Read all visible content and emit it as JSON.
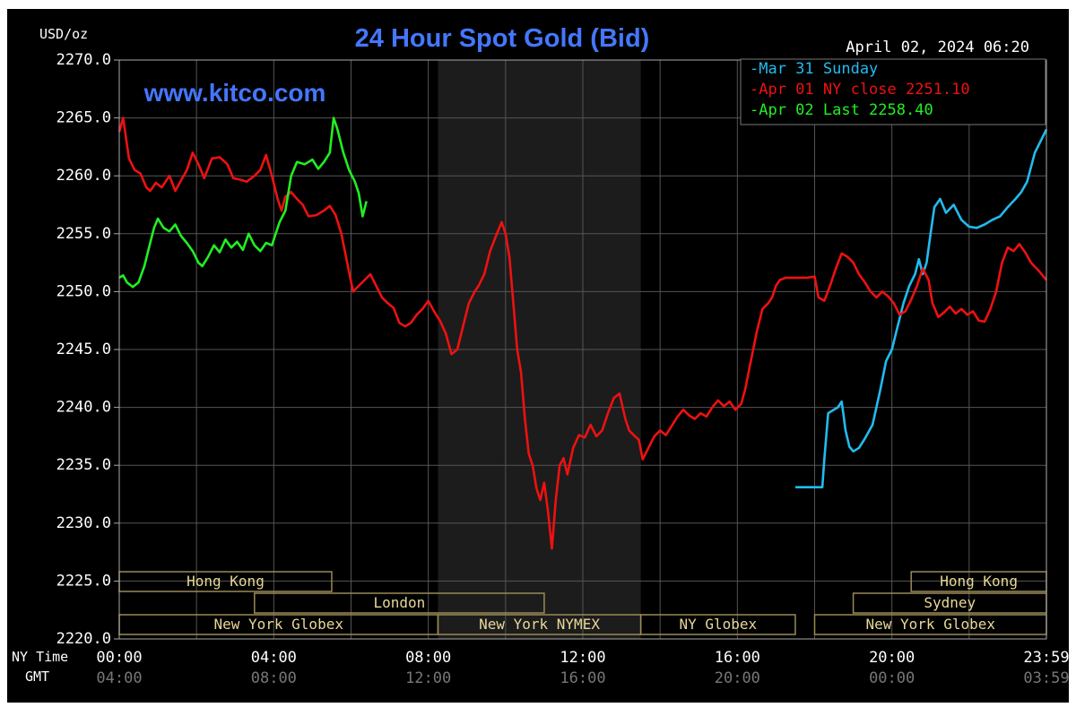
{
  "chart_data": {
    "type": "line",
    "title": "24 Hour Spot Gold (Bid)",
    "subtitle": "www.kitco.com",
    "date_label": "April 02, 2024 06:20",
    "ylabel": "USD/oz",
    "ylim": [
      2220.0,
      2270.0
    ],
    "y_ticks": [
      "2270.0",
      "2265.0",
      "2260.0",
      "2255.0",
      "2250.0",
      "2245.0",
      "2240.0",
      "2235.0",
      "2230.0",
      "2225.0",
      "2220.0"
    ],
    "xlim": [
      0,
      24
    ],
    "x_axis_label_ny": "NY Time",
    "x_axis_label_gmt": "GMT",
    "x_ticks_ny": [
      {
        "hour": 0,
        "label": "00:00"
      },
      {
        "hour": 4,
        "label": "04:00"
      },
      {
        "hour": 8,
        "label": "08:00"
      },
      {
        "hour": 12,
        "label": "12:00"
      },
      {
        "hour": 16,
        "label": "16:00"
      },
      {
        "hour": 20,
        "label": "20:00"
      },
      {
        "hour": 24,
        "label": "23:59"
      }
    ],
    "x_ticks_gmt": [
      {
        "hour": 0,
        "label": "04:00"
      },
      {
        "hour": 4,
        "label": "08:00"
      },
      {
        "hour": 8,
        "label": "12:00"
      },
      {
        "hour": 12,
        "label": "16:00"
      },
      {
        "hour": 16,
        "label": "20:00"
      },
      {
        "hour": 20,
        "label": "00:00"
      },
      {
        "hour": 24,
        "label": "03:59"
      }
    ],
    "grid": true,
    "legend_position": "top-right",
    "shaded_region": {
      "x_start": 8.25,
      "x_end": 13.5
    },
    "sessions": [
      {
        "label": "Hong Kong",
        "row": 0,
        "x_start": 0,
        "x_end": 5.5
      },
      {
        "label": "London",
        "row": 1,
        "x_start": 3.5,
        "x_end": 11.0
      },
      {
        "label": "New York Globex",
        "row": 2,
        "x_start": 0,
        "x_end": 8.25
      },
      {
        "label": "New York NYMEX",
        "row": 2,
        "x_start": 8.25,
        "x_end": 13.5
      },
      {
        "label": "NY Globex",
        "row": 2,
        "x_start": 13.5,
        "x_end": 17.5
      },
      {
        "label": "Hong Kong",
        "row": 0,
        "x_start": 20.5,
        "x_end": 24
      },
      {
        "label": "Sydney",
        "row": 1,
        "x_start": 19.0,
        "x_end": 24
      },
      {
        "label": "New York Globex",
        "row": 2,
        "x_start": 18.0,
        "x_end": 24
      }
    ],
    "series": [
      {
        "name": "Mar 31 Sunday",
        "color": "#22bbee",
        "points": [
          [
            17.5,
            2233.1
          ],
          [
            18.2,
            2233.1
          ],
          [
            18.25,
            2235.5
          ],
          [
            18.35,
            2239.5
          ],
          [
            18.5,
            2239.8
          ],
          [
            18.6,
            2240.0
          ],
          [
            18.7,
            2240.5
          ],
          [
            18.8,
            2238.0
          ],
          [
            18.9,
            2236.6
          ],
          [
            19.0,
            2236.2
          ],
          [
            19.15,
            2236.5
          ],
          [
            19.3,
            2237.3
          ],
          [
            19.5,
            2238.5
          ],
          [
            19.7,
            2241.5
          ],
          [
            19.85,
            2244.0
          ],
          [
            20.0,
            2245.0
          ],
          [
            20.15,
            2247.0
          ],
          [
            20.3,
            2249.0
          ],
          [
            20.45,
            2250.5
          ],
          [
            20.6,
            2251.5
          ],
          [
            20.7,
            2252.8
          ],
          [
            20.8,
            2251.5
          ],
          [
            20.9,
            2252.5
          ],
          [
            21.0,
            2255.0
          ],
          [
            21.1,
            2257.3
          ],
          [
            21.25,
            2258.0
          ],
          [
            21.4,
            2256.8
          ],
          [
            21.6,
            2257.5
          ],
          [
            21.8,
            2256.2
          ],
          [
            22.0,
            2255.6
          ],
          [
            22.2,
            2255.5
          ],
          [
            22.4,
            2255.8
          ],
          [
            22.6,
            2256.2
          ],
          [
            22.8,
            2256.5
          ],
          [
            23.0,
            2257.3
          ],
          [
            23.2,
            2258.0
          ],
          [
            23.35,
            2258.6
          ],
          [
            23.5,
            2259.5
          ],
          [
            23.7,
            2262.0
          ],
          [
            24.0,
            2264.0
          ]
        ]
      },
      {
        "name": "Apr 01 NY close 2251.10",
        "color": "#ee1111",
        "points": [
          [
            0.0,
            2263.8
          ],
          [
            0.1,
            2265.0
          ],
          [
            0.25,
            2261.5
          ],
          [
            0.4,
            2260.5
          ],
          [
            0.55,
            2260.2
          ],
          [
            0.7,
            2259.0
          ],
          [
            0.8,
            2258.7
          ],
          [
            0.95,
            2259.4
          ],
          [
            1.1,
            2259.0
          ],
          [
            1.3,
            2260.0
          ],
          [
            1.45,
            2258.7
          ],
          [
            1.6,
            2259.6
          ],
          [
            1.75,
            2260.5
          ],
          [
            1.9,
            2262.0
          ],
          [
            2.05,
            2261.0
          ],
          [
            2.2,
            2259.8
          ],
          [
            2.4,
            2261.5
          ],
          [
            2.6,
            2261.6
          ],
          [
            2.8,
            2261.0
          ],
          [
            2.95,
            2259.8
          ],
          [
            3.1,
            2259.7
          ],
          [
            3.3,
            2259.5
          ],
          [
            3.5,
            2260.0
          ],
          [
            3.65,
            2260.5
          ],
          [
            3.8,
            2261.8
          ],
          [
            3.95,
            2260.0
          ],
          [
            4.1,
            2258.0
          ],
          [
            4.2,
            2257.0
          ],
          [
            4.3,
            2258.2
          ],
          [
            4.45,
            2258.6
          ],
          [
            4.6,
            2258.0
          ],
          [
            4.75,
            2257.5
          ],
          [
            4.9,
            2256.5
          ],
          [
            5.1,
            2256.6
          ],
          [
            5.3,
            2257.0
          ],
          [
            5.45,
            2257.4
          ],
          [
            5.6,
            2256.6
          ],
          [
            5.75,
            2255.0
          ],
          [
            5.9,
            2252.5
          ],
          [
            6.05,
            2250.0
          ],
          [
            6.2,
            2250.5
          ],
          [
            6.35,
            2251.0
          ],
          [
            6.5,
            2251.5
          ],
          [
            6.65,
            2250.5
          ],
          [
            6.8,
            2249.5
          ],
          [
            6.95,
            2249.0
          ],
          [
            7.1,
            2248.6
          ],
          [
            7.25,
            2247.3
          ],
          [
            7.4,
            2247.0
          ],
          [
            7.55,
            2247.3
          ],
          [
            7.7,
            2248.0
          ],
          [
            7.85,
            2248.5
          ],
          [
            8.0,
            2249.2
          ],
          [
            8.15,
            2248.3
          ],
          [
            8.3,
            2247.5
          ],
          [
            8.45,
            2246.4
          ],
          [
            8.6,
            2244.6
          ],
          [
            8.75,
            2245.0
          ],
          [
            8.9,
            2247.0
          ],
          [
            9.05,
            2249.0
          ],
          [
            9.2,
            2250.0
          ],
          [
            9.3,
            2250.5
          ],
          [
            9.45,
            2251.5
          ],
          [
            9.6,
            2253.5
          ],
          [
            9.75,
            2254.8
          ],
          [
            9.9,
            2256.0
          ],
          [
            10.0,
            2255.0
          ],
          [
            10.1,
            2253.0
          ],
          [
            10.2,
            2249.0
          ],
          [
            10.3,
            2245.0
          ],
          [
            10.4,
            2243.0
          ],
          [
            10.5,
            2239.0
          ],
          [
            10.6,
            2236.0
          ],
          [
            10.7,
            2235.0
          ],
          [
            10.8,
            2233.0
          ],
          [
            10.9,
            2232.0
          ],
          [
            11.0,
            2233.5
          ],
          [
            11.1,
            2231.0
          ],
          [
            11.2,
            2227.8
          ],
          [
            11.3,
            2232.0
          ],
          [
            11.4,
            2235.0
          ],
          [
            11.5,
            2235.6
          ],
          [
            11.6,
            2234.2
          ],
          [
            11.75,
            2236.5
          ],
          [
            11.9,
            2237.6
          ],
          [
            12.05,
            2237.4
          ],
          [
            12.2,
            2238.5
          ],
          [
            12.35,
            2237.5
          ],
          [
            12.5,
            2238.0
          ],
          [
            12.65,
            2239.5
          ],
          [
            12.8,
            2240.8
          ],
          [
            12.95,
            2241.2
          ],
          [
            13.1,
            2239.0
          ],
          [
            13.2,
            2238.0
          ],
          [
            13.35,
            2237.5
          ],
          [
            13.45,
            2237.2
          ],
          [
            13.55,
            2235.5
          ],
          [
            13.7,
            2236.5
          ],
          [
            13.85,
            2237.5
          ],
          [
            14.0,
            2238.0
          ],
          [
            14.15,
            2237.6
          ],
          [
            14.3,
            2238.4
          ],
          [
            14.45,
            2239.2
          ],
          [
            14.6,
            2239.8
          ],
          [
            14.75,
            2239.3
          ],
          [
            14.9,
            2239.0
          ],
          [
            15.05,
            2239.5
          ],
          [
            15.2,
            2239.2
          ],
          [
            15.35,
            2240.0
          ],
          [
            15.5,
            2240.6
          ],
          [
            15.65,
            2240.1
          ],
          [
            15.8,
            2240.5
          ],
          [
            15.95,
            2239.8
          ],
          [
            16.1,
            2240.3
          ],
          [
            16.2,
            2241.5
          ],
          [
            16.35,
            2244.0
          ],
          [
            16.5,
            2246.5
          ],
          [
            16.65,
            2248.5
          ],
          [
            16.8,
            2249.0
          ],
          [
            16.9,
            2249.5
          ],
          [
            17.0,
            2250.5
          ],
          [
            17.1,
            2251.0
          ],
          [
            17.25,
            2251.2
          ],
          [
            17.5,
            2251.2
          ],
          [
            17.8,
            2251.2
          ],
          [
            18.0,
            2251.3
          ],
          [
            18.1,
            2249.5
          ],
          [
            18.25,
            2249.2
          ],
          [
            18.4,
            2250.5
          ],
          [
            18.55,
            2252.0
          ],
          [
            18.7,
            2253.3
          ],
          [
            18.85,
            2253.0
          ],
          [
            19.0,
            2252.5
          ],
          [
            19.15,
            2251.5
          ],
          [
            19.3,
            2250.8
          ],
          [
            19.45,
            2250.0
          ],
          [
            19.6,
            2249.5
          ],
          [
            19.75,
            2250.0
          ],
          [
            19.9,
            2249.6
          ],
          [
            20.05,
            2249.0
          ],
          [
            20.2,
            2248.0
          ],
          [
            20.35,
            2248.3
          ],
          [
            20.5,
            2249.3
          ],
          [
            20.65,
            2250.5
          ],
          [
            20.8,
            2252.0
          ],
          [
            20.95,
            2251.0
          ],
          [
            21.05,
            2249.0
          ],
          [
            21.2,
            2247.8
          ],
          [
            21.35,
            2248.2
          ],
          [
            21.5,
            2248.7
          ],
          [
            21.65,
            2248.1
          ],
          [
            21.8,
            2248.5
          ],
          [
            21.95,
            2248.0
          ],
          [
            22.1,
            2248.3
          ],
          [
            22.25,
            2247.5
          ],
          [
            22.4,
            2247.4
          ],
          [
            22.55,
            2248.5
          ],
          [
            22.7,
            2250.0
          ],
          [
            22.85,
            2252.5
          ],
          [
            23.0,
            2253.8
          ],
          [
            23.15,
            2253.5
          ],
          [
            23.3,
            2254.1
          ],
          [
            23.45,
            2253.4
          ],
          [
            23.6,
            2252.5
          ],
          [
            23.8,
            2251.8
          ],
          [
            24.0,
            2251.0
          ]
        ]
      },
      {
        "name": "Apr 02 Last 2258.40",
        "color": "#22ee22",
        "points": [
          [
            0.0,
            2251.2
          ],
          [
            0.1,
            2251.4
          ],
          [
            0.2,
            2250.8
          ],
          [
            0.35,
            2250.4
          ],
          [
            0.5,
            2250.8
          ],
          [
            0.65,
            2252.2
          ],
          [
            0.8,
            2254.2
          ],
          [
            0.9,
            2255.5
          ],
          [
            1.0,
            2256.3
          ],
          [
            1.15,
            2255.5
          ],
          [
            1.3,
            2255.2
          ],
          [
            1.45,
            2255.8
          ],
          [
            1.6,
            2254.8
          ],
          [
            1.75,
            2254.2
          ],
          [
            1.9,
            2253.5
          ],
          [
            2.05,
            2252.5
          ],
          [
            2.15,
            2252.2
          ],
          [
            2.3,
            2253.0
          ],
          [
            2.45,
            2254.0
          ],
          [
            2.6,
            2253.4
          ],
          [
            2.75,
            2254.5
          ],
          [
            2.9,
            2253.8
          ],
          [
            3.05,
            2254.3
          ],
          [
            3.2,
            2253.6
          ],
          [
            3.35,
            2255.0
          ],
          [
            3.5,
            2254.0
          ],
          [
            3.65,
            2253.5
          ],
          [
            3.8,
            2254.2
          ],
          [
            3.95,
            2254.0
          ],
          [
            4.05,
            2255.0
          ],
          [
            4.15,
            2256.0
          ],
          [
            4.3,
            2257.0
          ],
          [
            4.45,
            2260.0
          ],
          [
            4.6,
            2261.2
          ],
          [
            4.8,
            2261.0
          ],
          [
            5.0,
            2261.4
          ],
          [
            5.15,
            2260.6
          ],
          [
            5.3,
            2261.2
          ],
          [
            5.45,
            2262.0
          ],
          [
            5.55,
            2265.0
          ],
          [
            5.65,
            2264.0
          ],
          [
            5.8,
            2262.0
          ],
          [
            5.95,
            2260.5
          ],
          [
            6.1,
            2259.5
          ],
          [
            6.2,
            2258.5
          ],
          [
            6.3,
            2256.5
          ],
          [
            6.4,
            2257.8
          ]
        ]
      }
    ]
  }
}
